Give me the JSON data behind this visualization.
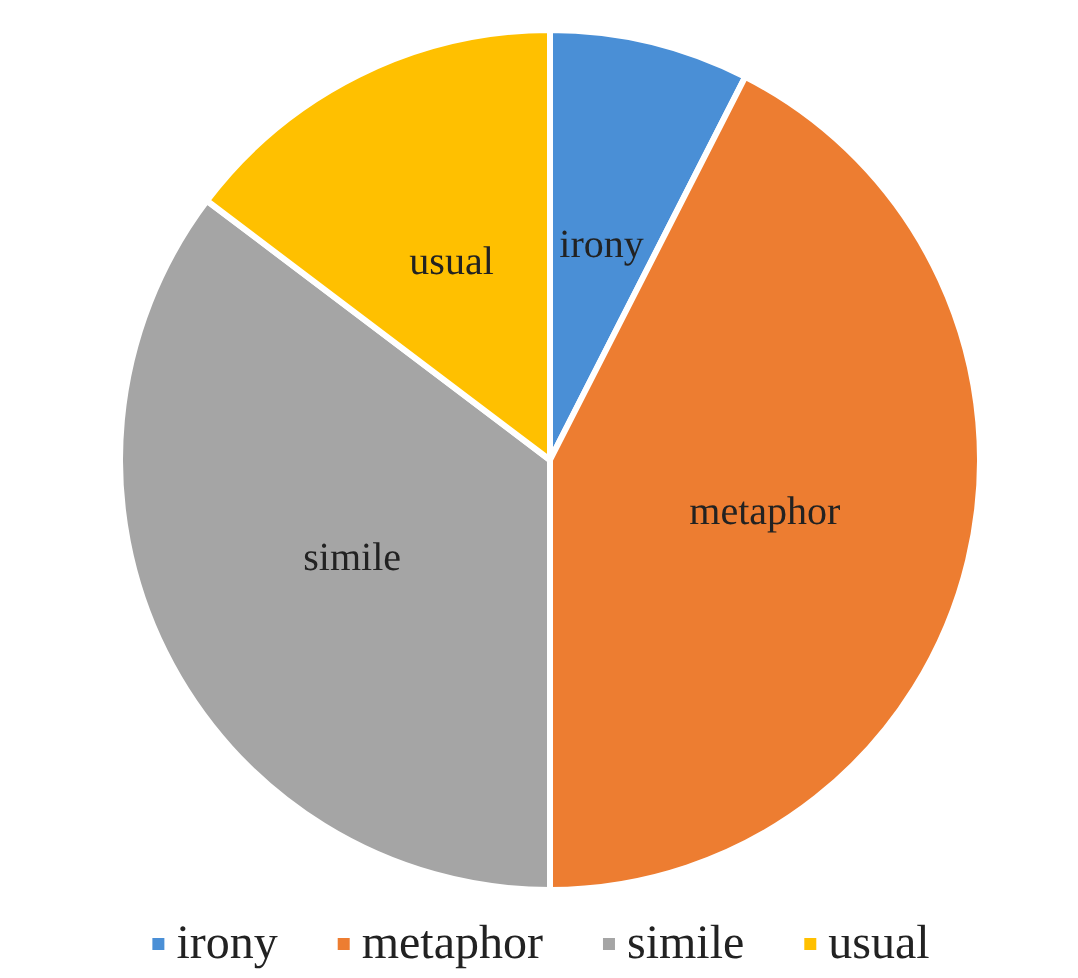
{
  "chart_data": {
    "type": "pie",
    "categories": [
      "irony",
      "metaphor",
      "simile",
      "usual"
    ],
    "values": [
      7.5,
      42.5,
      35.3,
      14.7
    ],
    "colors": [
      "#4a8fd6",
      "#ed7d31",
      "#a5a5a5",
      "#ffc000"
    ],
    "legend": "bottom"
  }
}
